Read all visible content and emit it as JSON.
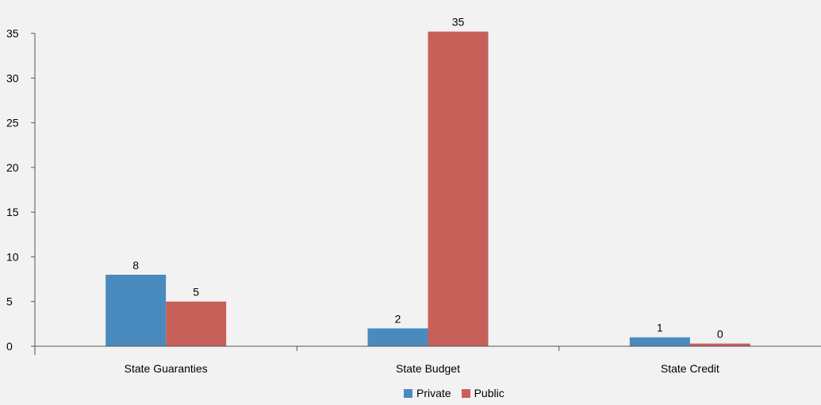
{
  "chart_data": {
    "type": "bar",
    "categories": [
      "State Guaranties",
      "State Budget",
      "State Credit"
    ],
    "series": [
      {
        "name": "Private",
        "values": [
          8,
          2,
          1
        ],
        "labels": [
          "8",
          "2",
          "1"
        ],
        "color": "#4a8bbf"
      },
      {
        "name": "Public",
        "values": [
          5,
          35.2,
          0.3
        ],
        "labels": [
          "5",
          "35",
          "0"
        ],
        "color": "#c8605a"
      }
    ],
    "yticks": [
      "0",
      "5",
      "10",
      "15",
      "20",
      "25",
      "30",
      "35"
    ],
    "ylim": [
      0,
      35
    ],
    "grid": false,
    "legend_position": "bottom-center",
    "title": "",
    "xlabel": "",
    "ylabel": ""
  }
}
